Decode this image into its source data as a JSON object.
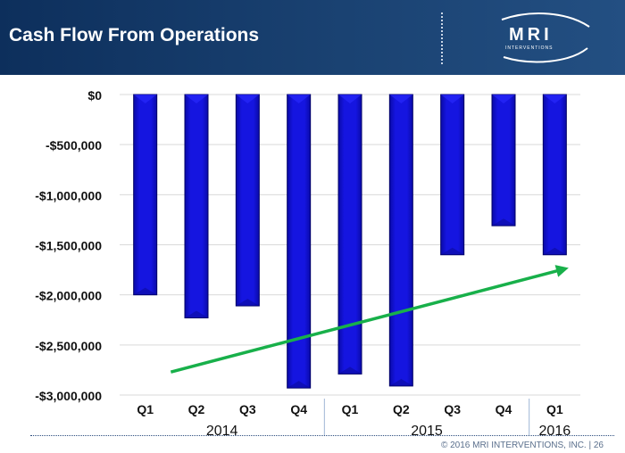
{
  "header": {
    "title": "Cash Flow From Operations"
  },
  "logo": {
    "name": "MRI",
    "subtitle": "INTERVENTIONS"
  },
  "footer": {
    "text": "© 2016 MRI INTERVENTIONS, INC.   |   26"
  },
  "chart_data": {
    "type": "bar",
    "categories": [
      "Q1",
      "Q2",
      "Q3",
      "Q4",
      "Q1",
      "Q2",
      "Q3",
      "Q4",
      "Q1"
    ],
    "values": [
      -2000000,
      -2230000,
      -2110000,
      -2930000,
      -2790000,
      -2910000,
      -1600000,
      -1310000,
      -1600000
    ],
    "year_groups": [
      {
        "label": "2014",
        "start": 0,
        "end": 3
      },
      {
        "label": "2015",
        "start": 4,
        "end": 7
      },
      {
        "label": "2016",
        "start": 8,
        "end": 8
      }
    ],
    "title": "",
    "xlabel": "",
    "ylabel": "",
    "ylim": [
      -3000000,
      0
    ],
    "yticks": [
      0,
      -500000,
      -1000000,
      -1500000,
      -2000000,
      -2500000,
      -3000000
    ],
    "ytick_labels": [
      "$0",
      "-$500,000",
      "-$1,000,000",
      "-$1,500,000",
      "-$2,000,000",
      "-$2,500,000",
      "-$3,000,000"
    ],
    "grid": true,
    "legend": "none",
    "bar_color": "#1515e0",
    "bar_edge_color": "#000066",
    "trend_arrow": {
      "from": [
        0.5,
        -2770000
      ],
      "to": [
        8.2,
        -1740000
      ],
      "color": "#18b04a"
    }
  }
}
